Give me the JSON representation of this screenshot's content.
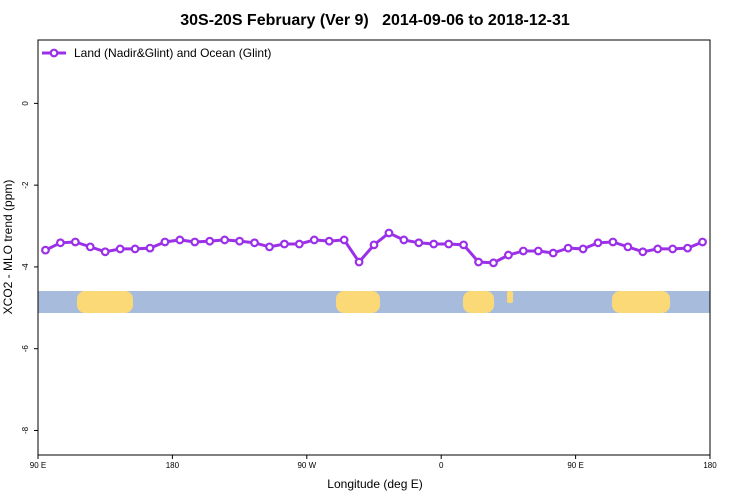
{
  "chart_data": {
    "type": "line",
    "title": "30S-20S February (Ver 9)   2014-09-06 to 2018-12-31",
    "x_label": "Longitude (deg E)",
    "y_label": "XCO2 - MLO trend (ppm)",
    "x": [
      95,
      105,
      115,
      125,
      135,
      145,
      155,
      165,
      175,
      185,
      195,
      205,
      215,
      225,
      235,
      245,
      255,
      265,
      275,
      285,
      295,
      305,
      315,
      325,
      335,
      345,
      355,
      365,
      375,
      385,
      395,
      405,
      415,
      425,
      435,
      445,
      455,
      465,
      475,
      485,
      495,
      505,
      515,
      525,
      535
    ],
    "series": [
      {
        "name": "Land (Nadir&Glint) and Ocean (Glint)",
        "color": "#9b30e8",
        "values": [
          -3.59,
          -3.41,
          -3.39,
          -3.51,
          -3.63,
          -3.56,
          -3.56,
          -3.54,
          -3.39,
          -3.34,
          -3.39,
          -3.37,
          -3.34,
          -3.37,
          -3.41,
          -3.51,
          -3.44,
          -3.44,
          -3.34,
          -3.37,
          -3.34,
          -3.88,
          -3.46,
          -3.17,
          -3.34,
          -3.41,
          -3.44,
          -3.44,
          -3.46,
          -3.88,
          -3.9,
          -3.71,
          -3.61,
          -3.61,
          -3.66,
          -3.54,
          -3.56,
          -3.41,
          -3.39,
          -3.51,
          -3.63,
          -3.56,
          -3.56,
          -3.54,
          -3.39
        ]
      }
    ],
    "xlim": [
      90,
      540
    ],
    "xticks": [
      {
        "value": 90,
        "label": "90 E"
      },
      {
        "value": 180,
        "label": "180"
      },
      {
        "value": 270,
        "label": "90 W"
      },
      {
        "value": 360,
        "label": "0"
      },
      {
        "value": 450,
        "label": "90 E"
      },
      {
        "value": 540,
        "label": "180"
      }
    ],
    "ylim": [
      -8.6,
      1.55
    ],
    "yticks": [
      0,
      -2,
      -4,
      -6,
      -8
    ],
    "legend": "top-left"
  }
}
